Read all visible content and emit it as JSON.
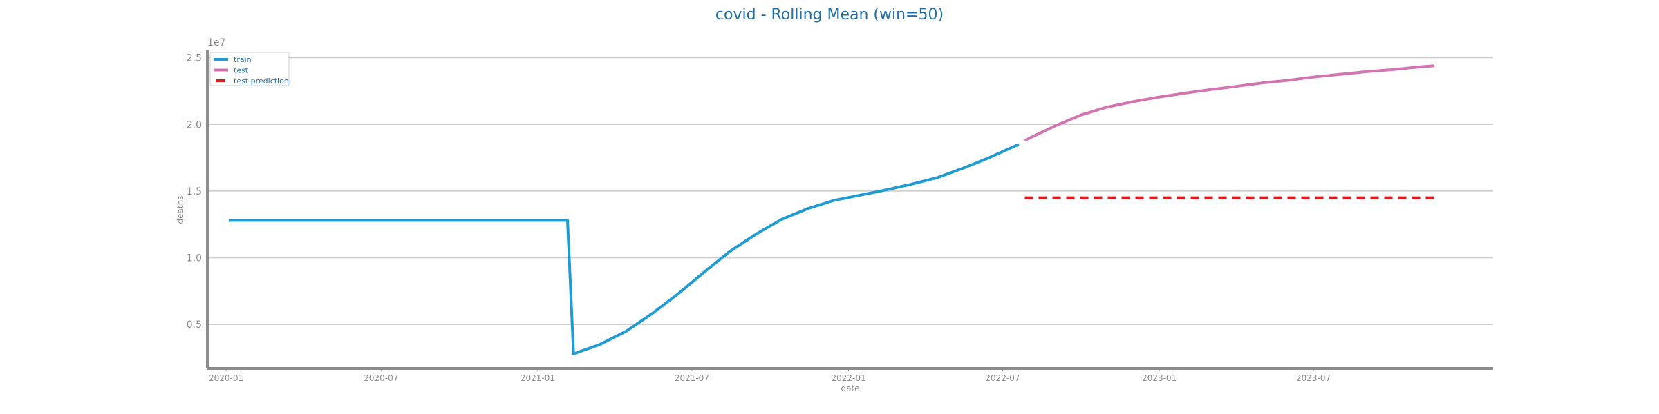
{
  "chart_data": {
    "type": "line",
    "title": "covid - Rolling Mean (win=50)",
    "xlabel": "date",
    "ylabel": "deaths",
    "y_multiplier_label": "1e7",
    "y_scale_factor": 10000000,
    "xlim": [
      "2019-12-10",
      "2024-01-28"
    ],
    "ylim": [
      1700000,
      25600000
    ],
    "x_ticks": [
      "2020-01-01",
      "2020-07-01",
      "2021-01-01",
      "2021-07-01",
      "2022-01-01",
      "2022-07-01",
      "2023-01-01",
      "2023-07-01"
    ],
    "x_tick_labels": [
      "2020-01",
      "2020-07",
      "2021-01",
      "2021-07",
      "2022-01",
      "2022-07",
      "2023-01",
      "2023-07"
    ],
    "y_ticks": [
      5000000,
      10000000,
      15000000,
      20000000,
      25000000
    ],
    "y_tick_labels": [
      "0.5",
      "1.0",
      "1.5",
      "2.0",
      "2.5"
    ],
    "grid": "horizontal",
    "legend_position": "top-left",
    "series": [
      {
        "name": "train",
        "color": "#1f9cd2",
        "style": "solid",
        "points": [
          {
            "x": "2020-01-05",
            "y": 12800000
          },
          {
            "x": "2021-02-05",
            "y": 12800000
          },
          {
            "x": "2021-02-12",
            "y": 2800000
          },
          {
            "x": "2021-03-15",
            "y": 3500000
          },
          {
            "x": "2021-04-15",
            "y": 4500000
          },
          {
            "x": "2021-05-15",
            "y": 5800000
          },
          {
            "x": "2021-06-15",
            "y": 7300000
          },
          {
            "x": "2021-07-15",
            "y": 8900000
          },
          {
            "x": "2021-08-15",
            "y": 10500000
          },
          {
            "x": "2021-09-15",
            "y": 11800000
          },
          {
            "x": "2021-10-15",
            "y": 12900000
          },
          {
            "x": "2021-11-15",
            "y": 13700000
          },
          {
            "x": "2021-12-15",
            "y": 14300000
          },
          {
            "x": "2022-01-15",
            "y": 14700000
          },
          {
            "x": "2022-02-15",
            "y": 15100000
          },
          {
            "x": "2022-03-15",
            "y": 15500000
          },
          {
            "x": "2022-04-15",
            "y": 16000000
          },
          {
            "x": "2022-05-15",
            "y": 16700000
          },
          {
            "x": "2022-06-15",
            "y": 17500000
          },
          {
            "x": "2022-07-20",
            "y": 18500000
          }
        ]
      },
      {
        "name": "test",
        "color": "#d174b0",
        "style": "solid",
        "points": [
          {
            "x": "2022-07-27",
            "y": 18800000
          },
          {
            "x": "2022-09-01",
            "y": 19900000
          },
          {
            "x": "2022-10-01",
            "y": 20700000
          },
          {
            "x": "2022-11-01",
            "y": 21300000
          },
          {
            "x": "2022-12-01",
            "y": 21700000
          },
          {
            "x": "2023-01-01",
            "y": 22050000
          },
          {
            "x": "2023-02-01",
            "y": 22350000
          },
          {
            "x": "2023-03-01",
            "y": 22600000
          },
          {
            "x": "2023-04-01",
            "y": 22850000
          },
          {
            "x": "2023-05-01",
            "y": 23100000
          },
          {
            "x": "2023-06-01",
            "y": 23300000
          },
          {
            "x": "2023-07-01",
            "y": 23550000
          },
          {
            "x": "2023-08-01",
            "y": 23750000
          },
          {
            "x": "2023-09-01",
            "y": 23950000
          },
          {
            "x": "2023-10-01",
            "y": 24100000
          },
          {
            "x": "2023-11-01",
            "y": 24300000
          },
          {
            "x": "2023-11-20",
            "y": 24400000
          }
        ]
      },
      {
        "name": "test prediction",
        "color": "#e8141a",
        "style": "dashed",
        "points": [
          {
            "x": "2022-07-27",
            "y": 14500000
          },
          {
            "x": "2023-11-20",
            "y": 14500000
          }
        ]
      }
    ]
  }
}
